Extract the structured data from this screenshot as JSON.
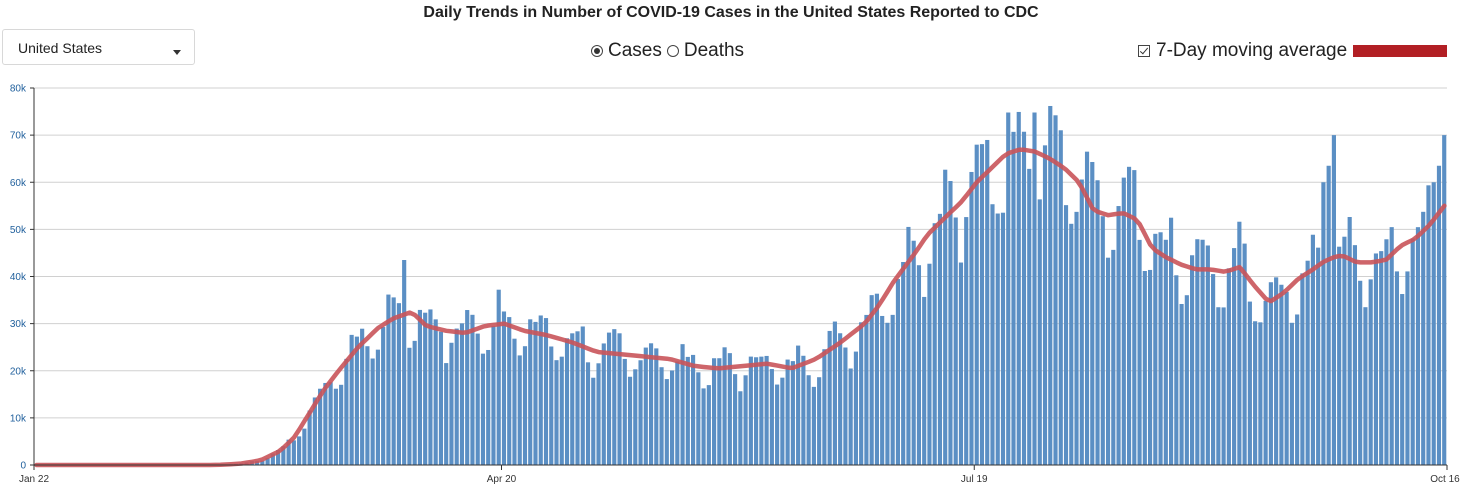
{
  "title": "Daily Trends in Number of COVID-19 Cases in the United States Reported to CDC",
  "dropdown": {
    "value": "United States"
  },
  "radios": [
    {
      "label": "Cases",
      "checked": true
    },
    {
      "label": "Deaths",
      "checked": false
    }
  ],
  "legend": {
    "label": "7-Day moving average",
    "checked": true,
    "color": "#b21f24"
  },
  "colors": {
    "bar": "#5b8fc4",
    "average": "#c9545a",
    "grid": "#d0d0d0"
  },
  "chart_data": {
    "type": "bar",
    "y_unit": "daily cases",
    "x_start": "Jan 22",
    "x_end": "Oct 16",
    "x_tick_labels": [
      {
        "label": "Jan 22",
        "day": 0
      },
      {
        "label": "Apr 20",
        "day": 89
      },
      {
        "label": "Jul 19",
        "day": 179
      },
      {
        "label": "Oct 16",
        "day": 268
      }
    ],
    "y_ticks": [
      {
        "label": "0",
        "value": 0
      },
      {
        "label": "10k",
        "value": 10000
      },
      {
        "label": "20k",
        "value": 20000
      },
      {
        "label": "30k",
        "value": 30000
      },
      {
        "label": "40k",
        "value": 40000
      },
      {
        "label": "50k",
        "value": 50000
      },
      {
        "label": "60k",
        "value": 60000
      },
      {
        "label": "70k",
        "value": 70000
      },
      {
        "label": "80k",
        "value": 80000
      }
    ],
    "ylim": [
      0,
      80000
    ],
    "grid": true,
    "series": [
      {
        "name": "Cases",
        "values": [
          0,
          0,
          0,
          0,
          0,
          0,
          0,
          0,
          0,
          0,
          0,
          0,
          0,
          0,
          0,
          0,
          0,
          0,
          0,
          0,
          0,
          0,
          0,
          0,
          0,
          0,
          0,
          0,
          0,
          0,
          0,
          0,
          0,
          0,
          0,
          0,
          0,
          0,
          0,
          0,
          0,
          0,
          0,
          0,
          0,
          0,
          0,
          0,
          0,
          0,
          0,
          0,
          0,
          0,
          0,
          0,
          0,
          0,
          0,
          0,
          0,
          0,
          0,
          0,
          0,
          0,
          0,
          0,
          0,
          0,
          0,
          0,
          0,
          0,
          0,
          0,
          0,
          0,
          0,
          0,
          0,
          0,
          0,
          0,
          0,
          0,
          0,
          0,
          0,
          0,
          0,
          0,
          0,
          0,
          0,
          0,
          0,
          0,
          0,
          0,
          0,
          0,
          0,
          0,
          0,
          0,
          0,
          0,
          0,
          0,
          0,
          0,
          0,
          0,
          0,
          0,
          0,
          0,
          0,
          0,
          0,
          0,
          0,
          0,
          0,
          0,
          0,
          0,
          0,
          0,
          0,
          0,
          0,
          0,
          0,
          0,
          0,
          0,
          0,
          0,
          0,
          0,
          0,
          0,
          0,
          0,
          0,
          0,
          0,
          0,
          0,
          0,
          0,
          0,
          0,
          0,
          0,
          0,
          0,
          0,
          0,
          0,
          0,
          0,
          0,
          0,
          0,
          0,
          0,
          0,
          0,
          0,
          0,
          0,
          0,
          0,
          0,
          0,
          0,
          0,
          0,
          0,
          0,
          0,
          0,
          0,
          0,
          0,
          0,
          0,
          0,
          0,
          0,
          0,
          0,
          0,
          0,
          0,
          0,
          0,
          0,
          0,
          0,
          0,
          0,
          0,
          0,
          0,
          0,
          0,
          0,
          0,
          0,
          0,
          0,
          0,
          0,
          0,
          0,
          0,
          0,
          0,
          0,
          0,
          0,
          0,
          0,
          0,
          0,
          0,
          0,
          0,
          0,
          0,
          0,
          0,
          0,
          0,
          0,
          0,
          0,
          0,
          0,
          0,
          0,
          0,
          0,
          0,
          0,
          0,
          0,
          0,
          0,
          0,
          0,
          0,
          0,
          0,
          0,
          0,
          0,
          0,
          0,
          0,
          0,
          0,
          0,
          0
        ]
      },
      {
        "name": "7-Day moving average",
        "values": []
      }
    ]
  }
}
